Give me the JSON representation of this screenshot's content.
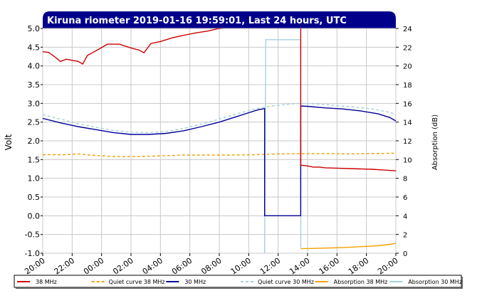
{
  "title": "Kiruna riometer 2019-01-16 19:59:01, Last 24 hours, UTC",
  "colors": {
    "title_bg": "#00008b",
    "grid": "#c8c8c8",
    "38MHz": "#cc0000",
    "quiet38": "#f0a000",
    "30MHz": "#000099",
    "quiet30": "#a8d0dc",
    "abs38": "#f0a000",
    "abs30": "#a8d0e0"
  },
  "chart_data": {
    "type": "line",
    "title": "Kiruna riometer 2019-01-16 19:59:01, Last 24 hours, UTC",
    "ylabel": "Volt",
    "y2label": "Absorption (dB)",
    "x_ticks": [
      "20:00",
      "22:00",
      "00:00",
      "02:00",
      "04:00",
      "06:00",
      "08:00",
      "10:00",
      "12:00",
      "14:00",
      "16:00",
      "18:00",
      "20:00"
    ],
    "x_range_hours": [
      0,
      24
    ],
    "y_ticks": [
      "5.0",
      "4.5",
      "4.0",
      "3.5",
      "3.0",
      "2.5",
      "2.0",
      "1.5",
      "1.0",
      "0.5",
      "0.0",
      "-0.5",
      "-1.0"
    ],
    "ylim": [
      -1.0,
      5.0
    ],
    "y2_ticks": [
      "24",
      "22",
      "20",
      "18",
      "16",
      "14",
      "12",
      "10",
      "8",
      "6",
      "4",
      "2",
      "0"
    ],
    "y2lim": [
      0,
      24
    ],
    "grid": true,
    "legend_position": "bottom",
    "series": [
      {
        "name": "38 MHz",
        "axis": "left",
        "style": "solid",
        "points": [
          [
            0,
            4.38
          ],
          [
            0.5,
            4.36
          ],
          [
            1,
            4.25
          ],
          [
            1.5,
            4.12
          ],
          [
            2,
            4.18
          ],
          [
            2.5,
            4.15
          ],
          [
            3,
            4.12
          ],
          [
            3.4,
            4.05
          ],
          [
            3.8,
            4.28
          ],
          [
            4.5,
            4.4
          ],
          [
            5.5,
            4.58
          ],
          [
            6.5,
            4.58
          ],
          [
            7.5,
            4.48
          ],
          [
            8.2,
            4.42
          ],
          [
            8.6,
            4.35
          ],
          [
            9.2,
            4.6
          ],
          [
            10,
            4.65
          ],
          [
            11,
            4.75
          ],
          [
            12,
            4.82
          ],
          [
            13,
            4.88
          ],
          [
            14,
            4.93
          ],
          [
            15,
            5.0
          ],
          [
            16,
            5.03
          ],
          [
            17,
            5.08
          ],
          [
            18,
            5.1
          ],
          [
            19,
            5.12
          ],
          [
            20,
            5.12
          ],
          [
            21,
            5.12
          ],
          [
            21.92,
            5.12
          ],
          [
            21.92,
            1.35
          ],
          [
            22.5,
            1.33
          ],
          [
            23,
            1.3
          ],
          [
            23.5,
            1.3
          ],
          [
            24,
            1.28
          ],
          [
            25,
            1.27
          ],
          [
            26,
            1.26
          ],
          [
            27,
            1.25
          ],
          [
            28,
            1.24
          ],
          [
            29,
            1.22
          ],
          [
            30,
            1.2
          ]
        ]
      },
      {
        "name": "Quiet curve 38 MHz",
        "axis": "left",
        "style": "dashed",
        "points": [
          [
            0,
            1.63
          ],
          [
            2,
            1.63
          ],
          [
            3,
            1.65
          ],
          [
            4,
            1.62
          ],
          [
            6,
            1.58
          ],
          [
            8,
            1.58
          ],
          [
            10,
            1.6
          ],
          [
            12,
            1.62
          ],
          [
            14,
            1.62
          ],
          [
            16,
            1.62
          ],
          [
            18,
            1.63
          ],
          [
            20,
            1.65
          ],
          [
            22,
            1.66
          ],
          [
            24,
            1.66
          ],
          [
            26,
            1.65
          ],
          [
            28,
            1.66
          ],
          [
            30,
            1.67
          ]
        ]
      },
      {
        "name": "30 MHz",
        "axis": "left",
        "style": "solid",
        "points": [
          [
            0,
            2.6
          ],
          [
            1.5,
            2.48
          ],
          [
            3,
            2.38
          ],
          [
            4.5,
            2.3
          ],
          [
            6,
            2.22
          ],
          [
            7.5,
            2.17
          ],
          [
            9,
            2.17
          ],
          [
            10.5,
            2.2
          ],
          [
            12,
            2.27
          ],
          [
            13.5,
            2.38
          ],
          [
            15,
            2.5
          ],
          [
            16.5,
            2.65
          ],
          [
            17.5,
            2.75
          ],
          [
            18.3,
            2.83
          ],
          [
            18.85,
            2.86
          ],
          [
            18.85,
            1.97
          ],
          [
            18.85,
            0.0
          ],
          [
            21.92,
            0.0
          ],
          [
            21.92,
            2.93
          ],
          [
            22.5,
            2.92
          ],
          [
            24,
            2.88
          ],
          [
            25.5,
            2.85
          ],
          [
            27,
            2.8
          ],
          [
            28.5,
            2.72
          ],
          [
            29.5,
            2.62
          ],
          [
            30,
            2.53
          ]
        ]
      },
      {
        "name": "Quiet curve 30 MHz",
        "axis": "left",
        "style": "dashed",
        "points": [
          [
            0,
            2.7
          ],
          [
            1.5,
            2.58
          ],
          [
            3,
            2.46
          ],
          [
            4.5,
            2.36
          ],
          [
            6,
            2.28
          ],
          [
            7.5,
            2.23
          ],
          [
            9,
            2.22
          ],
          [
            10.5,
            2.25
          ],
          [
            12,
            2.33
          ],
          [
            13.5,
            2.45
          ],
          [
            15,
            2.58
          ],
          [
            16.5,
            2.72
          ],
          [
            18,
            2.85
          ],
          [
            19.5,
            2.93
          ],
          [
            21,
            2.98
          ],
          [
            22,
            3.0
          ],
          [
            23.5,
            2.98
          ],
          [
            25,
            2.94
          ],
          [
            26.5,
            2.9
          ],
          [
            28,
            2.85
          ],
          [
            29.5,
            2.76
          ],
          [
            30,
            2.7
          ]
        ]
      },
      {
        "name": "Absorption 38 MHz",
        "axis": "right",
        "style": "solid",
        "points": [
          [
            21.92,
            0.5
          ],
          [
            22.5,
            0.5
          ],
          [
            24,
            0.55
          ],
          [
            25.5,
            0.6
          ],
          [
            27,
            0.7
          ],
          [
            28.5,
            0.8
          ],
          [
            29.5,
            0.95
          ],
          [
            30,
            1.05
          ]
        ]
      },
      {
        "name": "Absorption 30 MHz",
        "axis": "right",
        "style": "solid",
        "points": [
          [
            18.85,
            0
          ],
          [
            18.95,
            22.8
          ],
          [
            21.92,
            22.8
          ],
          [
            21.92,
            0.6
          ]
        ]
      }
    ]
  },
  "legend": [
    {
      "label": "38 MHz",
      "color": "#cc0000",
      "dash": false
    },
    {
      "label": "Quiet curve 38 MHz",
      "color": "#f0a000",
      "dash": true
    },
    {
      "label": "30 MHz",
      "color": "#000099",
      "dash": false
    },
    {
      "label": "Quiet curve 30 MHz",
      "color": "#a8d0dc",
      "dash": true
    },
    {
      "label": "Absorption 38 MHz",
      "color": "#f0a000",
      "dash": false
    },
    {
      "label": "Absorption 30 MHz",
      "color": "#a8d0e0",
      "dash": false
    }
  ]
}
